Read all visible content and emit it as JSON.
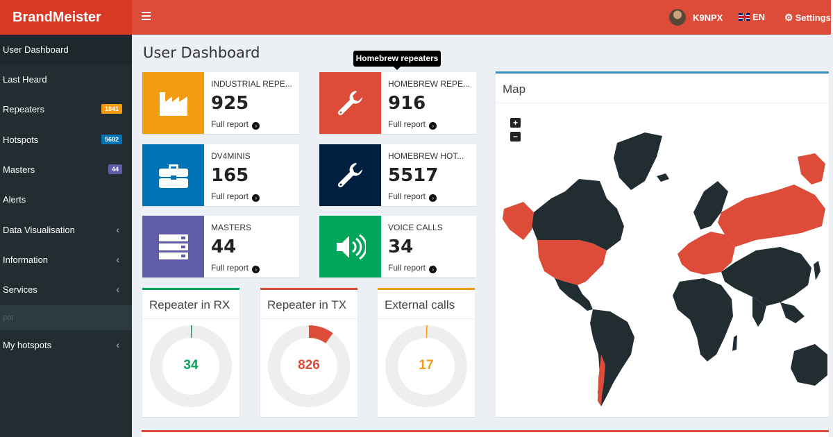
{
  "app": {
    "brand": "BrandMeister"
  },
  "header": {
    "user": "K9NPX",
    "language": "EN",
    "settings_label": "Settings"
  },
  "sidebar": {
    "items": [
      {
        "label": "User Dashboard",
        "active": true
      },
      {
        "label": "Last Heard"
      },
      {
        "label": "Repeaters",
        "badge": "1841",
        "badge_color": "#f39c12"
      },
      {
        "label": "Hotspots",
        "badge": "5682",
        "badge_color": "#0073b7"
      },
      {
        "label": "Masters",
        "badge": "44",
        "badge_color": "#605ca8"
      },
      {
        "label": "Alerts"
      },
      {
        "label": "Data Visualisation",
        "expandable": true
      },
      {
        "label": "Information",
        "expandable": true
      },
      {
        "label": "Services",
        "expandable": true
      },
      {
        "label": "My hotspots",
        "expandable": true
      }
    ],
    "submenu_fragment": "pot"
  },
  "main": {
    "title": "User Dashboard",
    "tooltip": "Homebrew repeaters",
    "infoboxes": [
      {
        "label": "INDUSTRIAL REPE...",
        "value": "925",
        "report": "Full report",
        "color": "#f39c12",
        "icon": "industry-icon"
      },
      {
        "label": "HOMEBREW REPE...",
        "value": "916",
        "report": "Full report",
        "color": "#dd4b39",
        "icon": "wrench-icon"
      },
      {
        "label": "DV4MINIS",
        "value": "165",
        "report": "Full report",
        "color": "#0073b7",
        "icon": "briefcase-icon"
      },
      {
        "label": "HOMEBREW HOT...",
        "value": "5517",
        "report": "Full report",
        "color": "#001f3f",
        "icon": "wrench-icon"
      },
      {
        "label": "MASTERS",
        "value": "44",
        "report": "Full report",
        "color": "#605ca8",
        "icon": "server-icon"
      },
      {
        "label": "VOICE CALLS",
        "value": "34",
        "report": "Full report",
        "color": "#00a65a",
        "icon": "volume-icon"
      }
    ],
    "gauges": [
      {
        "title": "Repeater in RX",
        "value": "34",
        "fraction": 0.004,
        "color": "#00a65a"
      },
      {
        "title": "Repeater in TX",
        "value": "826",
        "fraction": 0.1,
        "color": "#dd4b39"
      },
      {
        "title": "External calls",
        "value": "17",
        "fraction": 0.002,
        "color": "#f39c12"
      }
    ],
    "map": {
      "title": "Map",
      "zoom_in": "+",
      "zoom_out": "−",
      "land_color": "#222d32",
      "highlight_color": "#dd4b39"
    }
  }
}
